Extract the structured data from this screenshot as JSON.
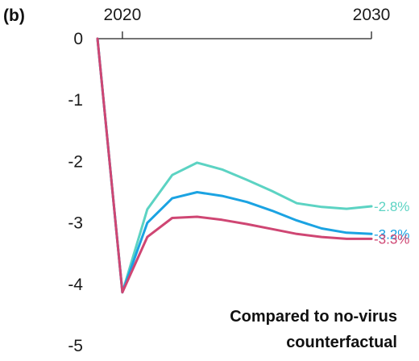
{
  "chart_data": {
    "type": "line",
    "panel_label": "(b)",
    "x": [
      2019,
      2020,
      2021,
      2022,
      2023,
      2024,
      2025,
      2026,
      2027,
      2028,
      2029,
      2030
    ],
    "x_axis_position": "top",
    "x_tick_labels": [
      "2020",
      "2030"
    ],
    "y_ticks": [
      0,
      -1,
      -2,
      -3,
      -4,
      -5
    ],
    "y_tick_labels": [
      "0",
      "-1",
      "-2",
      "-3",
      "-4",
      "-5"
    ],
    "ylim": [
      -5,
      0
    ],
    "xlim": [
      2019,
      2030
    ],
    "grid": false,
    "title": "",
    "xlabel": "",
    "ylabel": "",
    "annotation_lines": [
      "Compared to no-virus",
      "counterfactual"
    ],
    "series": [
      {
        "end_label": "-2.8%",
        "color": "#5cd3c3",
        "values": [
          0,
          -4.13,
          -2.78,
          -2.22,
          -2.02,
          -2.13,
          -2.3,
          -2.48,
          -2.68,
          -2.74,
          -2.77,
          -2.73
        ]
      },
      {
        "end_label": "-3.2%",
        "color": "#1ba3e2",
        "values": [
          0,
          -4.13,
          -3.0,
          -2.6,
          -2.5,
          -2.56,
          -2.66,
          -2.8,
          -2.96,
          -3.09,
          -3.16,
          -3.18
        ]
      },
      {
        "end_label": "-3.3%",
        "color": "#cf4673",
        "values": [
          0,
          -4.13,
          -3.23,
          -2.92,
          -2.9,
          -2.95,
          -3.02,
          -3.1,
          -3.18,
          -3.23,
          -3.26,
          -3.26
        ]
      }
    ]
  }
}
